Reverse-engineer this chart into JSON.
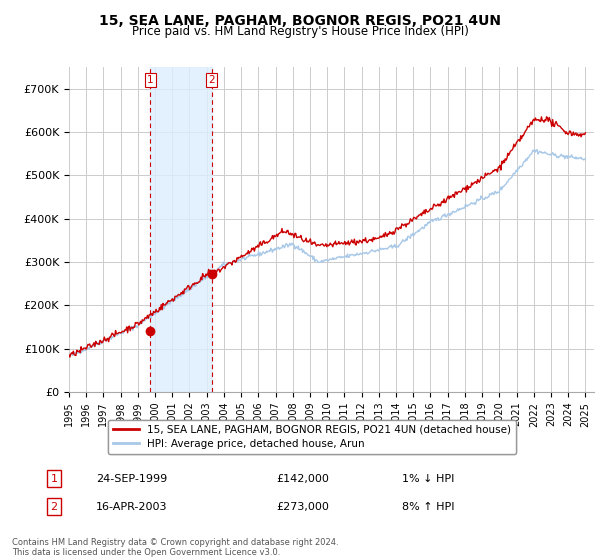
{
  "title": "15, SEA LANE, PAGHAM, BOGNOR REGIS, PO21 4UN",
  "subtitle": "Price paid vs. HM Land Registry's House Price Index (HPI)",
  "background_color": "#ffffff",
  "plot_bg_color": "#ffffff",
  "grid_color": "#cccccc",
  "hpi_color": "#a8c8e8",
  "price_color": "#cc0000",
  "shaded_region_color": "#ddeeff",
  "transaction1_date_num": 1999.73,
  "transaction1_price": 142000,
  "transaction1_label": "1",
  "transaction1_date_str": "24-SEP-1999",
  "transaction1_pct": "1% ↓ HPI",
  "transaction2_date_num": 2003.29,
  "transaction2_price": 273000,
  "transaction2_label": "2",
  "transaction2_date_str": "16-APR-2003",
  "transaction2_pct": "8% ↑ HPI",
  "legend_line1": "15, SEA LANE, PAGHAM, BOGNOR REGIS, PO21 4UN (detached house)",
  "legend_line2": "HPI: Average price, detached house, Arun",
  "footer": "Contains HM Land Registry data © Crown copyright and database right 2024.\nThis data is licensed under the Open Government Licence v3.0.",
  "ylim_max": 750000,
  "yticks": [
    0,
    100000,
    200000,
    300000,
    400000,
    500000,
    600000,
    700000
  ],
  "ytick_labels": [
    "£0",
    "£100K",
    "£200K",
    "£300K",
    "£400K",
    "£500K",
    "£600K",
    "£700K"
  ],
  "xmin": 1995.0,
  "xmax": 2025.5,
  "xticks": [
    1995,
    1996,
    1997,
    1998,
    1999,
    2000,
    2001,
    2002,
    2003,
    2004,
    2005,
    2006,
    2007,
    2008,
    2009,
    2010,
    2011,
    2012,
    2013,
    2014,
    2015,
    2016,
    2017,
    2018,
    2019,
    2020,
    2021,
    2022,
    2023,
    2024,
    2025
  ]
}
